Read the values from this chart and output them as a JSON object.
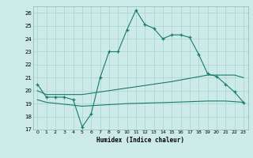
{
  "title": "",
  "xlabel": "Humidex (Indice chaleur)",
  "xlim": [
    -0.5,
    23.5
  ],
  "ylim": [
    17,
    26.5
  ],
  "yticks": [
    17,
    18,
    19,
    20,
    21,
    22,
    23,
    24,
    25,
    26
  ],
  "xticks": [
    0,
    1,
    2,
    3,
    4,
    5,
    6,
    7,
    8,
    9,
    10,
    11,
    12,
    13,
    14,
    15,
    16,
    17,
    18,
    19,
    20,
    21,
    22,
    23
  ],
  "background_color": "#cceae8",
  "grid_color": "#aad4d0",
  "line_color": "#1a7a6e",
  "curve1_x": [
    0,
    1,
    2,
    3,
    4,
    5,
    6,
    7,
    8,
    9,
    10,
    11,
    12,
    13,
    14,
    15,
    16,
    17,
    18,
    19,
    20,
    21,
    22,
    23
  ],
  "curve1_y": [
    20.5,
    19.5,
    19.5,
    19.5,
    19.3,
    17.2,
    18.2,
    21.0,
    23.0,
    23.0,
    24.7,
    26.2,
    25.1,
    24.8,
    24.0,
    24.3,
    24.3,
    24.1,
    22.8,
    21.3,
    21.1,
    20.5,
    19.9,
    19.1
  ],
  "curve2_x": [
    0,
    1,
    5,
    10,
    15,
    19,
    21,
    22,
    23
  ],
  "curve2_y": [
    20.0,
    19.7,
    19.7,
    20.2,
    20.7,
    21.2,
    21.2,
    21.2,
    21.0
  ],
  "curve3_x": [
    0,
    1,
    5,
    10,
    15,
    19,
    21,
    22,
    23
  ],
  "curve3_y": [
    19.3,
    19.1,
    18.8,
    19.0,
    19.1,
    19.2,
    19.2,
    19.15,
    19.1
  ]
}
